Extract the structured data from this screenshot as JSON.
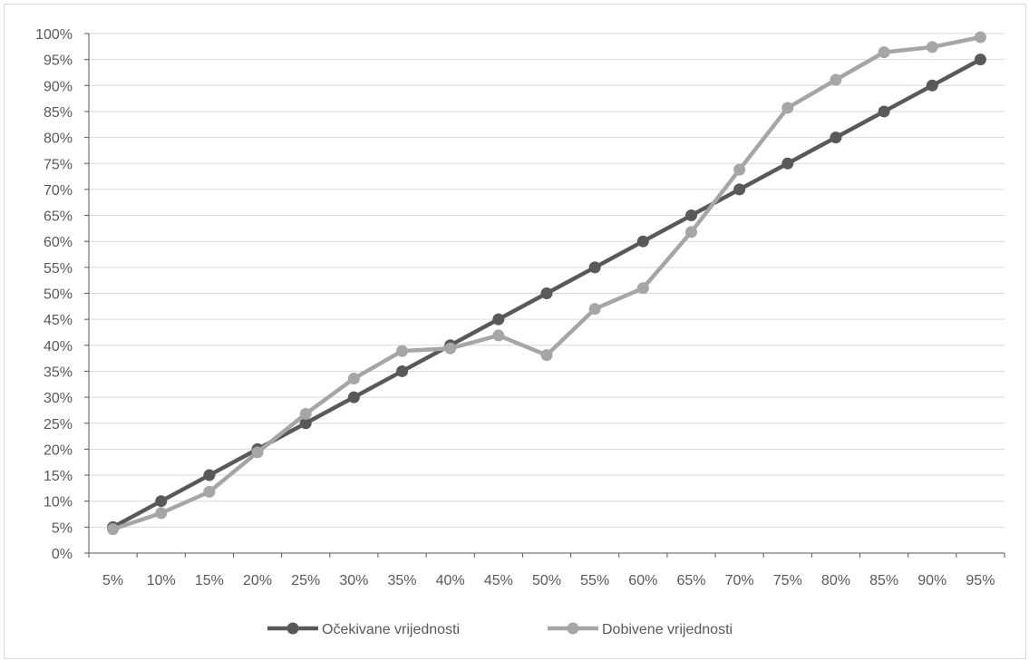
{
  "chart_data": {
    "type": "line",
    "title": "",
    "xlabel": "",
    "ylabel": "",
    "categories": [
      "5%",
      "10%",
      "15%",
      "20%",
      "25%",
      "30%",
      "35%",
      "40%",
      "45%",
      "50%",
      "55%",
      "60%",
      "65%",
      "70%",
      "75%",
      "80%",
      "85%",
      "90%",
      "95%"
    ],
    "y_ticks": [
      "0%",
      "5%",
      "10%",
      "15%",
      "20%",
      "25%",
      "30%",
      "35%",
      "40%",
      "45%",
      "50%",
      "55%",
      "60%",
      "65%",
      "70%",
      "75%",
      "80%",
      "85%",
      "90%",
      "95%",
      "100%"
    ],
    "ylim": [
      0,
      100
    ],
    "y_unit": "%",
    "grid": true,
    "legend_position": "bottom",
    "series": [
      {
        "name": "Očekivane vrijednosti",
        "color": "#595959",
        "values": [
          5,
          10,
          15,
          20,
          25,
          30,
          35,
          40,
          45,
          50,
          55,
          60,
          65,
          70,
          75,
          80,
          85,
          90,
          95
        ]
      },
      {
        "name": "Dobivene vrijednosti",
        "color": "#a6a6a6",
        "values": [
          4.6,
          7.7,
          11.8,
          19.4,
          26.8,
          33.6,
          38.9,
          39.4,
          41.9,
          38.1,
          47.0,
          51.0,
          61.8,
          73.8,
          85.7,
          91.1,
          96.4,
          97.4,
          99.3
        ]
      }
    ]
  }
}
